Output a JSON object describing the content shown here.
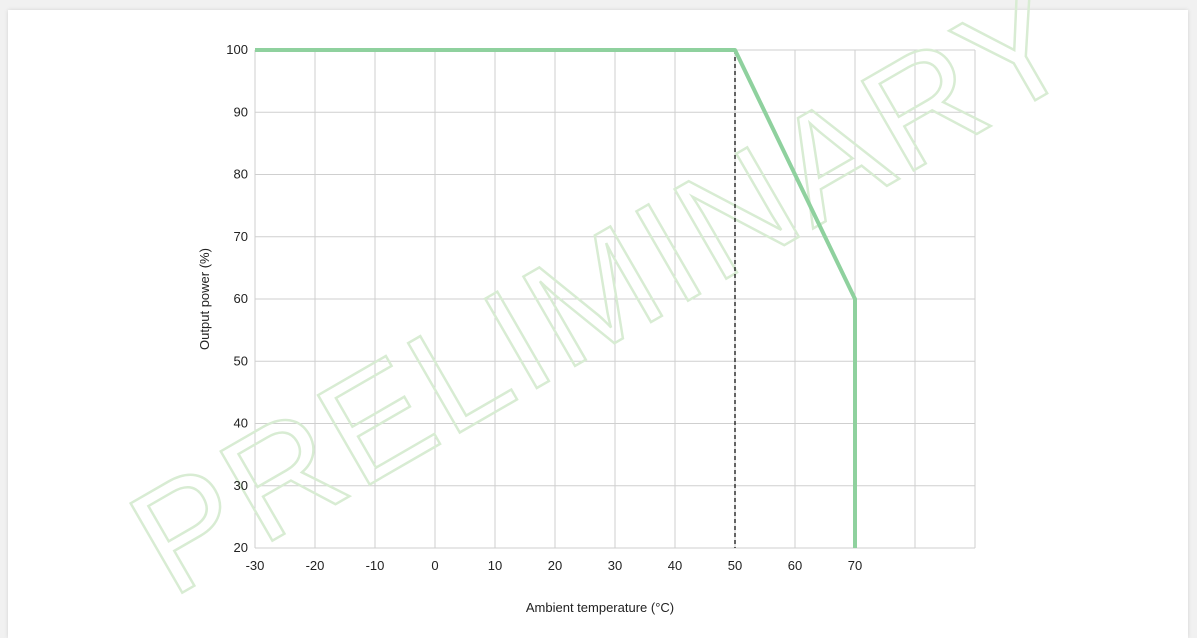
{
  "chart_data": {
    "type": "line",
    "title": "",
    "xlabel": "Ambient temperature (°C)",
    "ylabel": "Output power (%)",
    "xlim": [
      -30,
      90
    ],
    "ylim": [
      20,
      100
    ],
    "x_ticks": [
      -30,
      -20,
      -10,
      0,
      10,
      20,
      30,
      40,
      50,
      60,
      70
    ],
    "x_tick_labels": [
      "-30",
      "-20",
      "-10",
      "0",
      "10",
      "20",
      "30",
      "40",
      "50",
      "60",
      "70"
    ],
    "y_ticks": [
      20,
      30,
      40,
      50,
      60,
      70,
      80,
      90,
      100
    ],
    "y_tick_labels": [
      "20",
      "30",
      "40",
      "50",
      "60",
      "70",
      "80",
      "90",
      "100"
    ],
    "grid": true,
    "series": [
      {
        "x": [
          -30,
          50,
          70,
          70
        ],
        "y": [
          100,
          100,
          60,
          20
        ]
      }
    ],
    "reference_lines": [
      {
        "orientation": "vertical",
        "x": 50,
        "style": "dashed"
      }
    ],
    "series_color": "#8fd19e",
    "watermark": "PRELIMINARY",
    "watermark_color": "#d8ecd3"
  }
}
